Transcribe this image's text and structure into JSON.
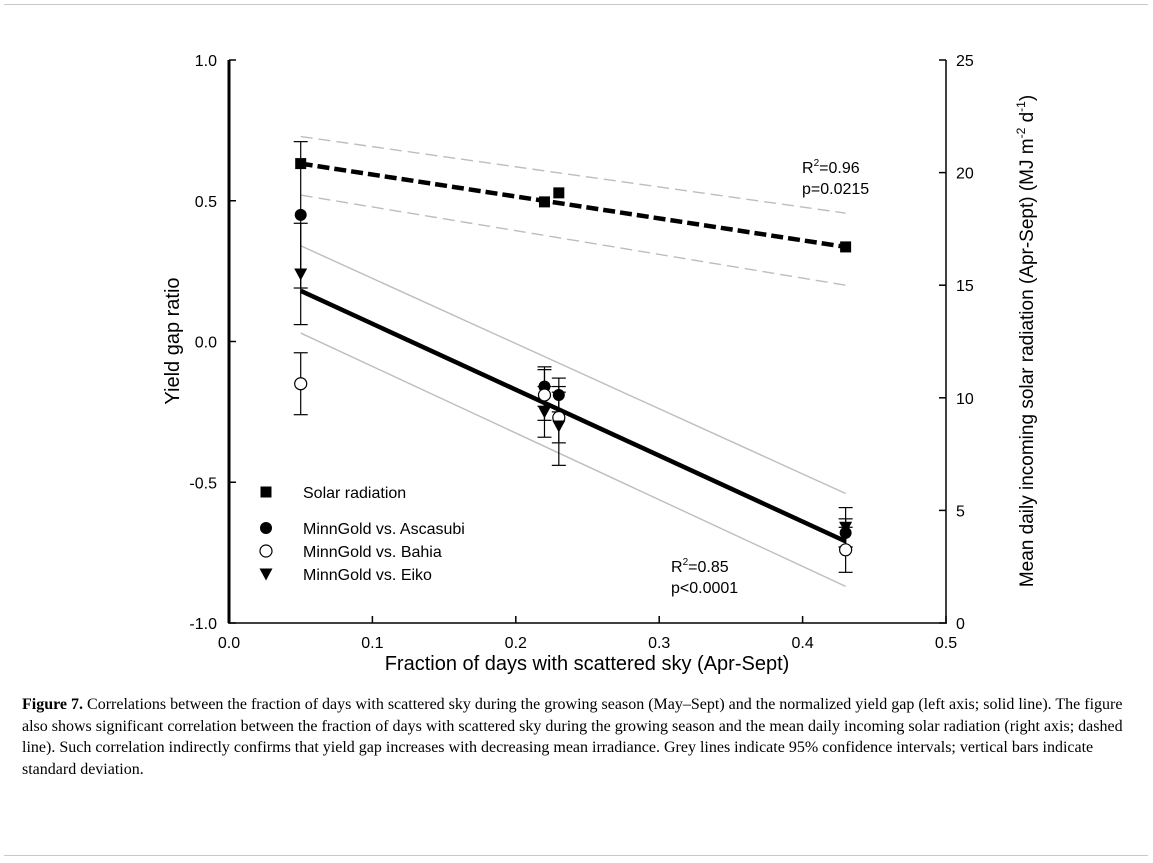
{
  "figure": {
    "caption_label": "Figure 7.",
    "caption_text": " Correlations between the fraction of days with scattered sky during the growing season (May–Sept) and the normalized yield gap (left axis; solid line). The figure also shows significant correlation between the fraction of days with scattered sky during the growing season and the mean daily incoming solar radiation (right axis; dashed line). Such correlation indirectly confirms that yield gap increases with decreasing mean irradiance. Grey lines indicate 95% confidence intervals; vertical bars indicate standard deviation."
  },
  "chart_data": {
    "type": "scatter",
    "xlabel": "Fraction of days with scattered sky (Apr-Sept)",
    "ylabel": "Yield gap ratio",
    "y2label_parts": [
      "Mean daily incoming solar radiation (Apr-Sept) (MJ m",
      "-2",
      " d",
      "-1",
      ")"
    ],
    "xlim": [
      0.0,
      0.5
    ],
    "ylim": [
      -1.0,
      1.0
    ],
    "y2lim": [
      0,
      25
    ],
    "xticks": [
      "0.0",
      "0.1",
      "0.2",
      "0.3",
      "0.4",
      "0.5"
    ],
    "yticks": [
      "-1.0",
      "-0.5",
      "0.0",
      "0.5",
      "1.0"
    ],
    "y2ticks": [
      "0",
      "5",
      "10",
      "15",
      "20",
      "25"
    ],
    "grid": false,
    "legend_position": "bottom-left",
    "legend": [
      {
        "label": "Solar radiation",
        "marker": "square-filled"
      },
      {
        "label": "MinnGold vs. Ascasubi",
        "marker": "circle-filled"
      },
      {
        "label": "MinnGold vs. Bahia",
        "marker": "circle-open"
      },
      {
        "label": "MinnGold vs. Eiko",
        "marker": "triangle-down-filled"
      }
    ],
    "series": [
      {
        "name": "Solar radiation",
        "axis": "right",
        "marker": "square-filled",
        "points": [
          {
            "x": 0.05,
            "y": 20.4
          },
          {
            "x": 0.22,
            "y": 18.7
          },
          {
            "x": 0.23,
            "y": 19.1
          },
          {
            "x": 0.43,
            "y": 16.7
          }
        ]
      },
      {
        "name": "MinnGold vs. Ascasubi",
        "axis": "left",
        "marker": "circle-filled",
        "points": [
          {
            "x": 0.05,
            "y": 0.45,
            "err": 0.26
          },
          {
            "x": 0.22,
            "y": -0.16,
            "err": 0.07
          },
          {
            "x": 0.23,
            "y": -0.19,
            "err": 0.06
          },
          {
            "x": 0.43,
            "y": -0.68,
            "err": 0.05
          }
        ]
      },
      {
        "name": "MinnGold vs. Bahia",
        "axis": "left",
        "marker": "circle-open",
        "points": [
          {
            "x": 0.05,
            "y": -0.15,
            "err": 0.11
          },
          {
            "x": 0.22,
            "y": -0.19,
            "err": 0.09
          },
          {
            "x": 0.23,
            "y": -0.27,
            "err": 0.09
          },
          {
            "x": 0.43,
            "y": -0.74,
            "err": 0.08
          }
        ]
      },
      {
        "name": "MinnGold vs. Eiko",
        "axis": "left",
        "marker": "triangle-down-filled",
        "points": [
          {
            "x": 0.05,
            "y": 0.24,
            "err": 0.18
          },
          {
            "x": 0.22,
            "y": -0.25,
            "err": 0.09
          },
          {
            "x": 0.23,
            "y": -0.3,
            "err": 0.14
          },
          {
            "x": 0.43,
            "y": -0.66,
            "err": 0.07
          }
        ]
      }
    ],
    "fits": [
      {
        "series": "MinnGold vs. (yield gap)",
        "axis": "left",
        "style": "solid",
        "x": [
          0.05,
          0.43
        ],
        "y": [
          0.18,
          -0.71
        ],
        "ci_upper": [
          0.34,
          -0.54
        ],
        "ci_lower": [
          0.03,
          -0.87
        ],
        "r2_label": "R",
        "r2_value": "=0.85",
        "p_label": "p<0.0001"
      },
      {
        "series": "Solar radiation",
        "axis": "right",
        "style": "dashed",
        "x": [
          0.05,
          0.43
        ],
        "y": [
          20.4,
          16.7
        ],
        "ci_upper": [
          21.6,
          18.2
        ],
        "ci_lower": [
          19.0,
          15.0
        ],
        "r2_label": "R",
        "r2_value": "=0.96",
        "p_label": "p=0.0215"
      }
    ],
    "colors": {
      "ci_line": "#bdbdbd",
      "fit_line": "#000000"
    }
  }
}
